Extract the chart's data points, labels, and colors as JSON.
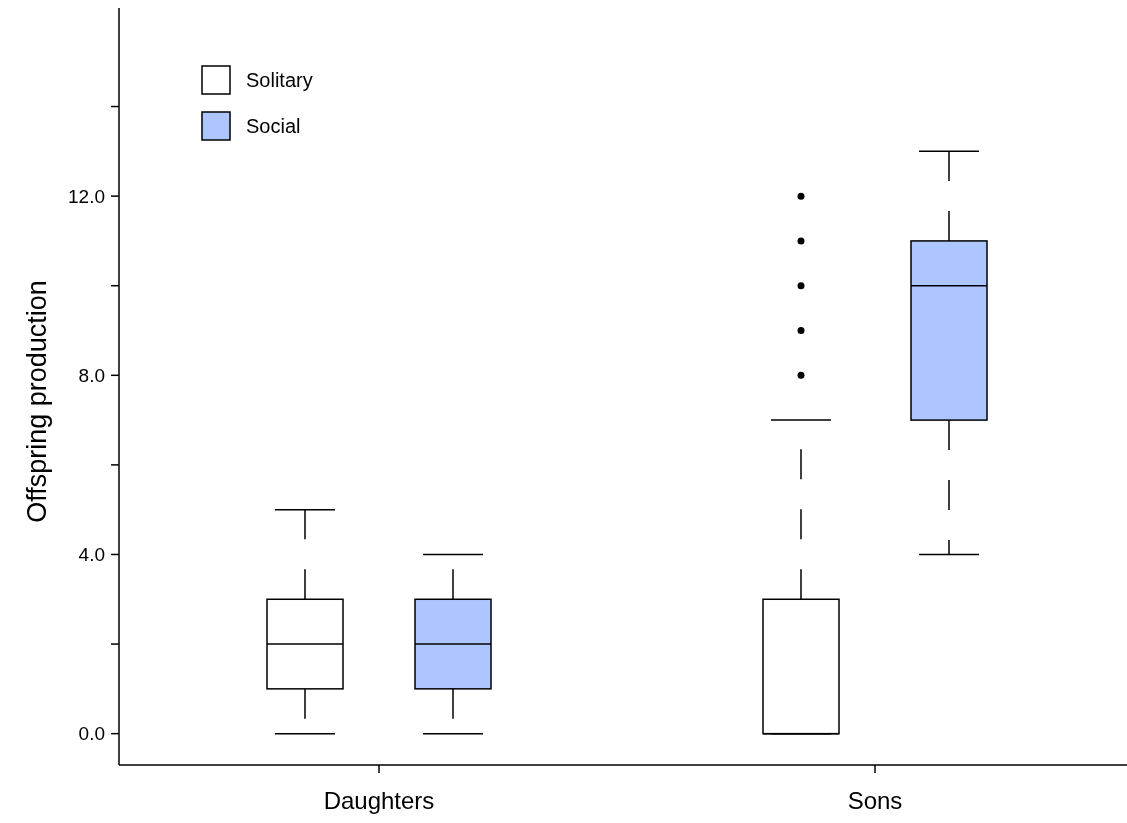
{
  "chart_data": {
    "type": "box",
    "ylabel": "Offspring production",
    "categories": [
      "Daughters",
      "Sons"
    ],
    "series": [
      {
        "name": "Solitary",
        "color": "#ffffff",
        "boxes": [
          {
            "low": 0,
            "q1": 1,
            "median": 2,
            "q3": 3,
            "high": 5
          },
          {
            "low": 0,
            "q1": 0,
            "median": 0,
            "q3": 3,
            "high": 7,
            "outliers": [
              8,
              9,
              10,
              11,
              12
            ]
          }
        ]
      },
      {
        "name": "Social",
        "color": "#aec6ff",
        "boxes": [
          {
            "low": 0,
            "q1": 1,
            "median": 2,
            "q3": 3,
            "high": 4
          },
          {
            "low": 4,
            "q1": 7,
            "median": 10,
            "q3": 11,
            "high": 13
          }
        ]
      }
    ],
    "ylim": [
      -0.7,
      16.2
    ],
    "yticks": [
      {
        "value": 0,
        "label": "0.0"
      },
      {
        "value": 2,
        "label": null
      },
      {
        "value": 4,
        "label": "4.0"
      },
      {
        "value": 6,
        "label": null
      },
      {
        "value": 8,
        "label": "8.0"
      },
      {
        "value": 10,
        "label": null
      },
      {
        "value": 12,
        "label": "12.0"
      },
      {
        "value": 14,
        "label": null
      }
    ],
    "legend": "top left",
    "grid": false,
    "line_style": "dashed"
  }
}
